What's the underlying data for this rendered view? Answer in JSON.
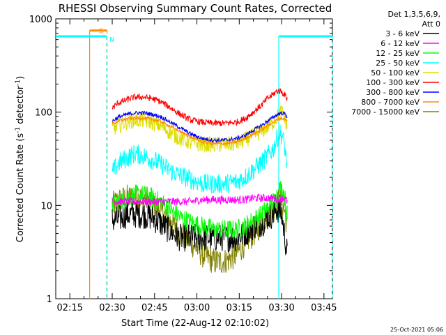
{
  "chart_data": {
    "type": "line",
    "title": "RHESSI Observing Summary Count Rates, Corrected",
    "xlabel": "Start Time (22-Aug-12 02:10:02)",
    "ylabel_main": "Corrected Count Rate (s",
    "ylabel_sup1": "-1",
    "ylabel_mid": " detector",
    "ylabel_sup2": "-1",
    "ylabel_end": ")",
    "x_unit": "minutes after 02:10",
    "xlim": [
      0,
      98
    ],
    "ylim": [
      1,
      1000
    ],
    "y_scale": "log",
    "x_ticks": [
      {
        "value": 5,
        "label": "02:15"
      },
      {
        "value": 20,
        "label": "02:30"
      },
      {
        "value": 35,
        "label": "02:45"
      },
      {
        "value": 50,
        "label": "03:00"
      },
      {
        "value": 65,
        "label": "03:15"
      },
      {
        "value": 80,
        "label": "03:30"
      },
      {
        "value": 95,
        "label": "03:45"
      }
    ],
    "y_ticks": [
      {
        "value": 1,
        "label": "1"
      },
      {
        "value": 10,
        "label": "10"
      },
      {
        "value": 100,
        "label": "100"
      },
      {
        "value": 1000,
        "label": "1000"
      }
    ],
    "legend_header": [
      "Det 1,3,5,6,9,",
      "Att 0"
    ],
    "legend_position": "right",
    "timestamp": "25-Oct-2021 05:06",
    "x_samples": [
      20,
      22,
      25,
      28,
      31,
      34,
      37,
      40,
      44,
      48,
      52,
      56,
      60,
      64,
      67,
      70,
      73,
      75,
      77,
      78,
      79,
      80,
      81,
      82
    ],
    "series": [
      {
        "name": "3 - 6 keV",
        "color": "#000000",
        "noise": 0.35,
        "values": [
          7,
          7,
          8,
          8,
          8,
          7.5,
          6.5,
          5.5,
          4.5,
          4.5,
          4.5,
          4.5,
          4.5,
          4.5,
          5,
          6,
          6.5,
          7.5,
          8,
          9,
          9,
          8,
          5,
          3
        ]
      },
      {
        "name": "6 - 12 keV",
        "color": "#ff00ff",
        "noise": 0.1,
        "values": [
          11,
          11,
          11,
          11,
          11,
          11,
          11,
          11,
          11,
          11,
          11.5,
          11.5,
          11.5,
          11.5,
          11.5,
          12,
          12,
          12,
          12,
          12,
          12,
          12,
          12,
          11
        ]
      },
      {
        "name": "12 - 25 keV",
        "color": "#00ff00",
        "noise": 0.25,
        "values": [
          10,
          11,
          12,
          13,
          13,
          12,
          11,
          9.5,
          7.5,
          6.5,
          6,
          5.5,
          5.5,
          5.5,
          6,
          7,
          8,
          9.5,
          11,
          12,
          15,
          15,
          13,
          8
        ]
      },
      {
        "name": "25 - 50 keV",
        "color": "#00ffff",
        "noise": 0.25,
        "values": [
          22,
          28,
          32,
          36,
          34,
          31,
          28,
          24,
          21,
          19,
          17,
          17,
          17,
          18,
          20,
          24,
          29,
          34,
          40,
          48,
          58,
          58,
          45,
          25
        ]
      },
      {
        "name": "50 - 100 keV",
        "color": "#dddd00",
        "noise": 0.2,
        "values": [
          65,
          72,
          78,
          82,
          82,
          78,
          72,
          62,
          52,
          47,
          45,
          45,
          45,
          46,
          50,
          56,
          63,
          70,
          78,
          85,
          95,
          100,
          90,
          70
        ]
      },
      {
        "name": "100 - 300 keV",
        "color": "#ff0000",
        "noise": 0.08,
        "values": [
          110,
          125,
          135,
          145,
          145,
          140,
          130,
          115,
          95,
          82,
          78,
          76,
          76,
          78,
          85,
          100,
          120,
          140,
          155,
          165,
          170,
          165,
          155,
          140
        ]
      },
      {
        "name": "300 - 800 keV",
        "color": "#0000ff",
        "noise": 0.05,
        "values": [
          80,
          88,
          94,
          98,
          98,
          95,
          90,
          80,
          68,
          58,
          52,
          50,
          50,
          52,
          56,
          64,
          72,
          80,
          88,
          92,
          96,
          98,
          96,
          90
        ]
      },
      {
        "name": "800 - 7000 keV",
        "color": "#ff8c00",
        "noise": 0.04,
        "values": [
          75,
          80,
          84,
          86,
          86,
          84,
          80,
          72,
          62,
          54,
          48,
          46,
          46,
          48,
          52,
          58,
          65,
          72,
          78,
          82,
          85,
          86,
          84,
          80
        ]
      },
      {
        "name": "7000 - 15000 keV",
        "color": "#808000",
        "noise": 0.35,
        "values": [
          10,
          11,
          12,
          12,
          12,
          11,
          9,
          7,
          5,
          4,
          3,
          2.5,
          2.5,
          3,
          4,
          5,
          6.5,
          8,
          9,
          10,
          11,
          11,
          9,
          6
        ]
      }
    ],
    "markers": [
      {
        "label": "S",
        "color": "#ff8c00",
        "start": 12,
        "end": 18.2,
        "level": 750
      },
      {
        "label": "N",
        "color": "#00ffff",
        "start": 0,
        "end": 18,
        "level": 650
      },
      {
        "label": "",
        "color": "#00ffff",
        "start": 79,
        "end": 98,
        "level": 650
      }
    ],
    "grid": false
  }
}
